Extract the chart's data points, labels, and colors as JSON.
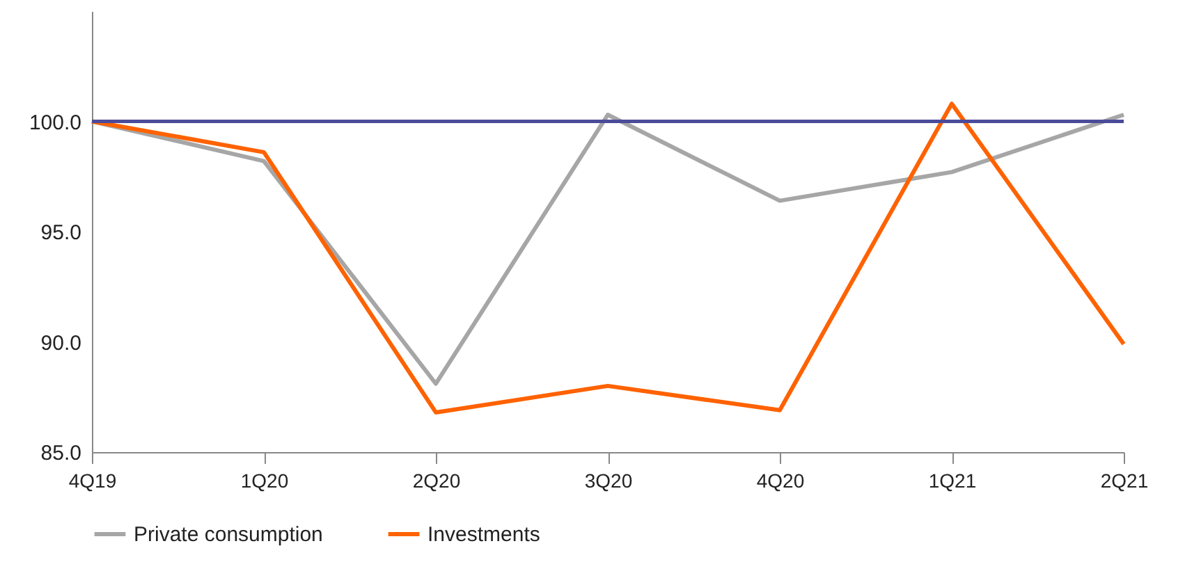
{
  "chart_data": {
    "type": "line",
    "categories": [
      "4Q19",
      "1Q20",
      "2Q20",
      "3Q20",
      "4Q20",
      "1Q21",
      "2Q21"
    ],
    "series": [
      {
        "name": "Private consumption",
        "color": "#a6a6a6",
        "values": [
          100.0,
          98.2,
          88.1,
          100.3,
          96.4,
          97.7,
          100.3
        ]
      },
      {
        "name": "Investments",
        "color": "#ff6200",
        "values": [
          100.0,
          98.6,
          86.8,
          88.0,
          86.9,
          100.8,
          89.9
        ]
      }
    ],
    "ylim": [
      85,
      105
    ],
    "yticks": [
      {
        "value": 85,
        "label": "85.0"
      },
      {
        "value": 90,
        "label": "90.0"
      },
      {
        "value": 95,
        "label": "95.0"
      },
      {
        "value": 100,
        "label": "100.0"
      }
    ],
    "ref_lines": [
      {
        "axis": "y",
        "value": 100,
        "color": "#4b4b9b"
      }
    ],
    "grid": false,
    "legend": "bottom",
    "marker": "none",
    "line_style": "solid"
  }
}
